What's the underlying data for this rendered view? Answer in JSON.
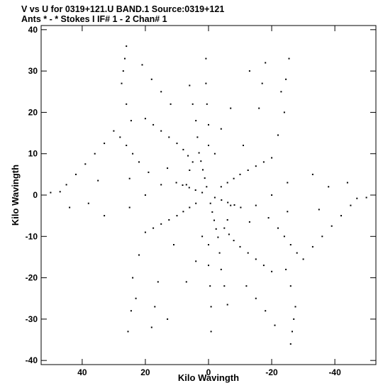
{
  "header": {
    "line1": "V vs U for 0319+121.U BAND.1   Source:0319+121",
    "line2": "Ants * - *     Stokes I  IF# 1 - 2  Chan# 1"
  },
  "chart_data": {
    "type": "scatter",
    "title": "V vs U for 0319+121.U BAND.1   Source:0319+121",
    "subtitle": "Ants * - *     Stokes I  IF# 1 - 2  Chan# 1",
    "xlabel": "Kilo Wavingth",
    "ylabel": "Kilo Wavingth",
    "xlim": [
      53,
      -53
    ],
    "ylim": [
      -41,
      41
    ],
    "x_reversed": true,
    "xticks": [
      40,
      20,
      0,
      -20,
      -40
    ],
    "xtick_labels": [
      "40",
      "20",
      "0",
      "-20",
      "-40"
    ],
    "yticks": [
      -40,
      -30,
      -20,
      -10,
      0,
      10,
      20,
      30,
      40
    ],
    "ytick_labels": [
      "-40",
      "-30",
      "-20",
      "-10",
      "0",
      "10",
      "20",
      "30",
      "40"
    ],
    "grid": false,
    "legend": "none",
    "marker_color": "#000000",
    "pattern": "six-armed snowflake of uv-tracks, radial spokes at 30, 90 and 150 degrees, point-symmetric",
    "half_points": [
      [
        0.6,
        2.0
      ],
      [
        1.2,
        4.1
      ],
      [
        1.8,
        6.1
      ],
      [
        2.4,
        8.2
      ],
      [
        3.0,
        10.2
      ],
      [
        2.0,
        0.6
      ],
      [
        4.1,
        1.2
      ],
      [
        6.1,
        1.8
      ],
      [
        8.2,
        2.4
      ],
      [
        10.2,
        3.0
      ],
      [
        5.0,
        8.0
      ],
      [
        6.5,
        9.5
      ],
      [
        8.0,
        11.0
      ],
      [
        10.0,
        12.5
      ],
      [
        12.5,
        14.0
      ],
      [
        15.0,
        15.5
      ],
      [
        17.5,
        17.0
      ],
      [
        20.0,
        18.5
      ],
      [
        4.0,
        -2.0
      ],
      [
        6.0,
        -3.0
      ],
      [
        8.0,
        -4.0
      ],
      [
        10.0,
        -5.0
      ],
      [
        12.5,
        -6.0
      ],
      [
        15.0,
        -7.0
      ],
      [
        17.5,
        -8.0
      ],
      [
        20.0,
        -9.0
      ],
      [
        22.0,
        8.0
      ],
      [
        24.0,
        10.0
      ],
      [
        26.0,
        12.0
      ],
      [
        28.0,
        14.0
      ],
      [
        30.0,
        15.5
      ],
      [
        33.0,
        12.5
      ],
      [
        36.0,
        10.0
      ],
      [
        39.0,
        7.5
      ],
      [
        42.0,
        5.0
      ],
      [
        45.0,
        2.5
      ],
      [
        47.0,
        0.8
      ],
      [
        50.0,
        0.6
      ],
      [
        26.0,
        36.0
      ],
      [
        26.5,
        33.0
      ],
      [
        27.0,
        30.0
      ],
      [
        27.5,
        27.0
      ],
      [
        26.0,
        22.0
      ],
      [
        24.5,
        18.0
      ],
      [
        21.0,
        31.5
      ],
      [
        18.0,
        28.0
      ],
      [
        15.0,
        25.0
      ],
      [
        12.0,
        22.0
      ],
      [
        6.0,
        26.5
      ],
      [
        5.0,
        22.0
      ],
      [
        4.0,
        18.0
      ],
      [
        3.5,
        14.0
      ],
      [
        24.0,
        -20.0
      ],
      [
        23.0,
        -25.0
      ],
      [
        24.5,
        -28.0
      ],
      [
        25.5,
        -33.0
      ],
      [
        22.0,
        -14.5
      ],
      [
        16.0,
        -21.0
      ],
      [
        17.0,
        -27.0
      ],
      [
        18.0,
        -32.0
      ],
      [
        13.0,
        -30.0
      ],
      [
        7.0,
        -21.0
      ],
      [
        4.0,
        -16.0
      ],
      [
        2.0,
        -10.0
      ],
      [
        25.0,
        4.0
      ],
      [
        19.0,
        5.5
      ],
      [
        13.0,
        6.5
      ],
      [
        15.0,
        2.5
      ],
      [
        25.0,
        -3.0
      ],
      [
        35.0,
        3.5
      ],
      [
        38.0,
        -2.0
      ],
      [
        44.0,
        -3.0
      ],
      [
        20.0,
        0.0
      ],
      [
        0.0,
        12.0
      ],
      [
        0.0,
        17.0
      ],
      [
        0.5,
        22.0
      ],
      [
        0.8,
        27.0
      ],
      [
        0.8,
        33.0
      ],
      [
        33.0,
        -5.0
      ],
      [
        11.0,
        -12.0
      ],
      [
        7.0,
        2.5
      ],
      [
        6.0,
        6.0
      ]
    ]
  }
}
